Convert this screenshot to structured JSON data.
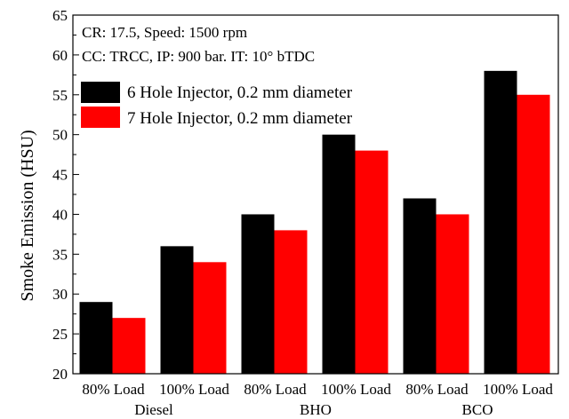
{
  "chart_data": {
    "type": "bar",
    "ylabel": "Smoke Emission (HSU)",
    "ylim": [
      20,
      65
    ],
    "ytick_step": 5,
    "minor_ytick_step": 2.5,
    "grid": false,
    "legend_position": "top-left",
    "annotations": [
      "CR: 17.5, Speed: 1500 rpm",
      "CC: TRCC, IP: 900 bar. IT: 10° bTDC"
    ],
    "categories": [
      "80% Load",
      "100% Load",
      "80% Load",
      "100% Load",
      "80% Load",
      "100% Load"
    ],
    "groups": [
      {
        "label": "Diesel",
        "start": 0,
        "end": 1
      },
      {
        "label": "BHO",
        "start": 2,
        "end": 3
      },
      {
        "label": "BCO",
        "start": 4,
        "end": 5
      }
    ],
    "series": [
      {
        "name": "6 Hole Injector, 0.2 mm diameter",
        "color": "#000000",
        "values": [
          29,
          36,
          40,
          50,
          42,
          58
        ]
      },
      {
        "name": "7 Hole Injector, 0.2 mm diameter",
        "color": "#ff0000",
        "values": [
          27,
          34,
          38,
          48,
          40,
          55
        ]
      }
    ]
  }
}
